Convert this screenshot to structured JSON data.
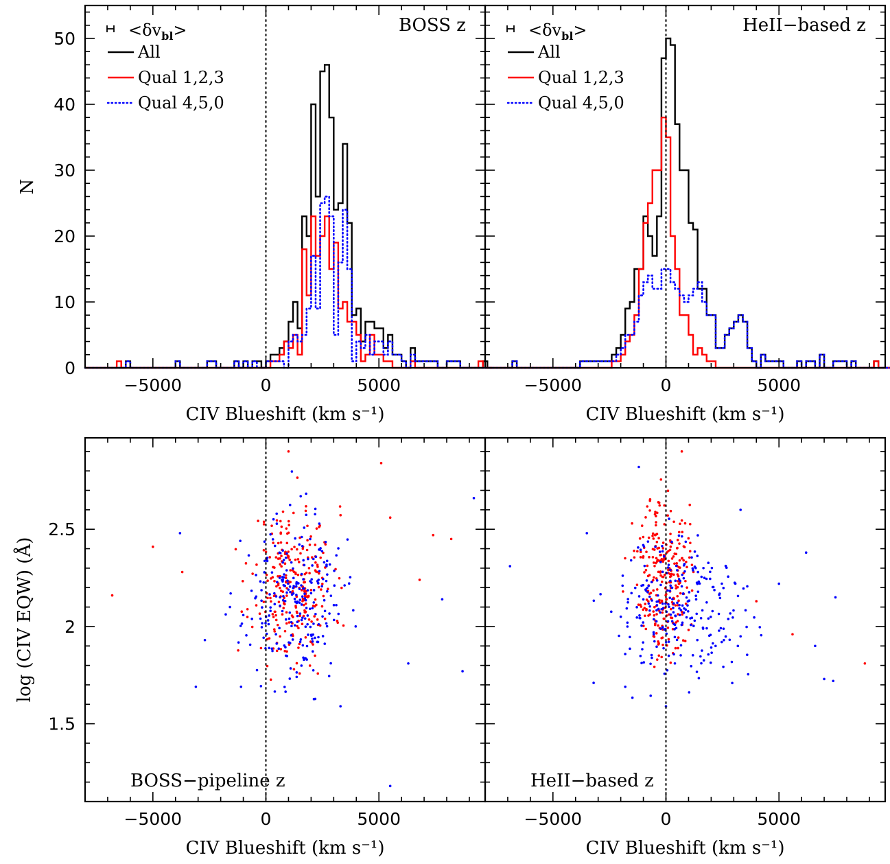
{
  "chart_data": [
    {
      "type": "histogram",
      "panel": "top-left",
      "annotation": "BOSS z",
      "xlabel": "CIV Blueshift (km s⁻¹)",
      "ylabel": "N",
      "xlim": [
        -8000,
        9700
      ],
      "ylim": [
        0,
        55
      ],
      "xticks": [
        -5000,
        0,
        5000
      ],
      "yticks": [
        0,
        10,
        20,
        30,
        40,
        50
      ],
      "reference_line_x": 0,
      "error_bar": {
        "x": -7000,
        "y": 50.5,
        "halfwidth": 150
      },
      "legend": {
        "errbar_label": "<δv",
        "errbar_sub": "bl",
        "errbar_close": ">",
        "entries": [
          "All",
          "Qual 1,2,3",
          "Qual 4,5,0"
        ],
        "placement": "top-left"
      },
      "bin_width": 200,
      "series": [
        {
          "name": "All",
          "color": "#000000",
          "style": "solid",
          "x_start": -8000,
          "values": [
            0,
            0,
            0,
            0,
            0,
            0,
            0,
            0,
            0,
            1,
            0,
            0,
            0,
            0,
            0,
            0,
            0,
            0,
            0,
            0,
            1,
            0,
            0,
            0,
            0,
            0,
            0,
            1,
            1,
            0,
            0,
            0,
            0,
            1,
            0,
            1,
            0,
            1,
            1,
            0,
            1,
            2,
            2,
            3,
            4,
            7,
            10,
            6,
            23,
            20,
            40,
            26,
            45,
            46,
            38,
            24,
            25,
            34,
            22,
            8,
            9,
            4,
            7,
            7,
            6,
            6,
            3,
            5,
            2,
            2,
            1,
            0,
            3,
            1,
            1,
            1,
            1,
            1,
            0,
            0,
            1,
            1,
            1,
            0,
            0,
            0,
            0,
            0,
            1,
            0
          ]
        },
        {
          "name": "Qual 1,2,3",
          "color": "#ff0000",
          "style": "solid",
          "x_start": -8000,
          "values": [
            0,
            0,
            0,
            0,
            0,
            0,
            0,
            1,
            0,
            0,
            0,
            0,
            0,
            0,
            0,
            0,
            0,
            0,
            0,
            0,
            0,
            0,
            0,
            0,
            0,
            0,
            0,
            0,
            0,
            0,
            0,
            0,
            0,
            0,
            0,
            0,
            0,
            0,
            0,
            0,
            0,
            1,
            1,
            2,
            4,
            3,
            5,
            2,
            18,
            11,
            23,
            17,
            20,
            23,
            15,
            19,
            9,
            10,
            7,
            7,
            5,
            1,
            2,
            5,
            2,
            2,
            1,
            1,
            0,
            0,
            0,
            0,
            1,
            0,
            0,
            0,
            0,
            0,
            0,
            0,
            0,
            0,
            0,
            0,
            0,
            0,
            0,
            1,
            0,
            0
          ]
        },
        {
          "name": "Qual 4,5,0",
          "color": "#0000ff",
          "style": "dotted",
          "x_start": -8000,
          "values": [
            0,
            0,
            0,
            0,
            0,
            0,
            0,
            0,
            0,
            1,
            0,
            0,
            0,
            0,
            0,
            0,
            0,
            0,
            0,
            0,
            1,
            0,
            0,
            0,
            0,
            0,
            0,
            1,
            1,
            0,
            0,
            0,
            0,
            1,
            0,
            1,
            0,
            1,
            0,
            0,
            1,
            1,
            1,
            1,
            0,
            4,
            5,
            4,
            5,
            9,
            17,
            9,
            25,
            26,
            23,
            5,
            16,
            24,
            15,
            1,
            4,
            3,
            5,
            2,
            4,
            4,
            2,
            4,
            2,
            2,
            1,
            0,
            2,
            1,
            1,
            1,
            1,
            1,
            0,
            0,
            1,
            1,
            1,
            0,
            0,
            0,
            0,
            0,
            0,
            0
          ]
        }
      ]
    },
    {
      "type": "histogram",
      "panel": "top-right",
      "annotation": "HeII−based z",
      "xlabel": "CIV Blueshift (km s⁻¹)",
      "xlim": [
        -8000,
        9700
      ],
      "ylim": [
        0,
        55
      ],
      "xticks": [
        -5000,
        0,
        5000
      ],
      "yticks": [
        0,
        10,
        20,
        30,
        40,
        50
      ],
      "reference_line_x": 0,
      "error_bar": {
        "x": -7000,
        "y": 50.5,
        "halfwidth": 150
      },
      "legend": {
        "errbar_label": "<δv",
        "errbar_sub": "bl",
        "errbar_close": ">",
        "entries": [
          "All",
          "Qual 1,2,3",
          "Qual 4,5,0"
        ],
        "placement": "top-left"
      },
      "bin_width": 200,
      "series": [
        {
          "name": "All",
          "color": "#000000",
          "style": "solid",
          "x_start": -8000,
          "values": [
            0,
            0,
            0,
            0,
            0,
            0,
            1,
            0,
            0,
            0,
            0,
            0,
            0,
            0,
            0,
            0,
            0,
            0,
            0,
            0,
            0,
            1,
            1,
            1,
            1,
            1,
            1,
            1,
            2,
            3,
            5,
            9,
            10,
            15,
            15,
            23,
            20,
            17,
            23,
            47,
            50,
            49,
            37,
            30,
            30,
            22,
            21,
            12,
            12,
            8,
            8,
            3,
            3,
            5,
            6,
            7,
            8,
            7,
            3,
            1,
            0,
            2,
            1,
            1,
            1,
            1,
            0,
            0,
            0,
            1,
            0,
            1,
            1,
            0,
            2,
            0,
            0,
            1,
            1,
            1,
            0,
            1,
            0,
            0,
            0,
            0,
            1,
            0,
            0,
            0,
            0,
            0
          ]
        },
        {
          "name": "Qual 1,2,3",
          "color": "#ff0000",
          "style": "solid",
          "x_start": -8000,
          "values": [
            0,
            0,
            0,
            0,
            0,
            0,
            0,
            0,
            0,
            0,
            0,
            0,
            0,
            0,
            0,
            0,
            0,
            0,
            0,
            0,
            0,
            0,
            0,
            0,
            0,
            0,
            0,
            0,
            1,
            1,
            2,
            4,
            5,
            8,
            15,
            22,
            25,
            30,
            30,
            38,
            35,
            20,
            15,
            8,
            8,
            5,
            2,
            3,
            2,
            1,
            1,
            0,
            0,
            0,
            0,
            0,
            0,
            0,
            0,
            0,
            0,
            0,
            0,
            0,
            0,
            0,
            0,
            0,
            0,
            0,
            0,
            0,
            0,
            0,
            0,
            0,
            0,
            0,
            0,
            0,
            0,
            0,
            0,
            0,
            0,
            0,
            1,
            0,
            0,
            0,
            0,
            0
          ]
        },
        {
          "name": "Qual 4,5,0",
          "color": "#0000ff",
          "style": "dotted",
          "x_start": -8000,
          "values": [
            0,
            0,
            0,
            0,
            0,
            0,
            1,
            0,
            0,
            0,
            0,
            0,
            0,
            0,
            0,
            0,
            0,
            0,
            0,
            0,
            0,
            1,
            1,
            1,
            1,
            1,
            1,
            1,
            1,
            2,
            3,
            5,
            5,
            7,
            11,
            13,
            14,
            12,
            12,
            15,
            15,
            13,
            12,
            11,
            10,
            11,
            12,
            13,
            10,
            8,
            8,
            3,
            3,
            5,
            6,
            7,
            8,
            7,
            3,
            1,
            0,
            2,
            1,
            1,
            1,
            1,
            0,
            0,
            0,
            1,
            0,
            1,
            1,
            0,
            2,
            0,
            0,
            1,
            1,
            1,
            0,
            1,
            0,
            0,
            0,
            0,
            0,
            0,
            0,
            0,
            0,
            0
          ]
        }
      ]
    },
    {
      "type": "scatter",
      "panel": "bottom-left",
      "annotation": "BOSS−pipeline z",
      "xlabel": "CIV Blueshift (km s⁻¹)",
      "ylabel": "log (CIV EQW) (Å)",
      "xlim": [
        -8000,
        9700
      ],
      "ylim": [
        1.1,
        2.97
      ],
      "xticks": [
        -5000,
        0,
        5000
      ],
      "yticks": [
        1.5,
        2,
        2.5
      ],
      "ytick_labels": [
        "1.5",
        "2",
        "2.5"
      ],
      "reference_line_x": 0,
      "series": [
        {
          "name": "Qual 1,2,3",
          "color": "#ff0000",
          "n": 260,
          "center": [
            1200,
            2.22
          ],
          "spread": [
            900,
            0.2
          ],
          "seed": 11,
          "outliers": [
            [
              -6800,
              2.16
            ],
            [
              -5000,
              2.41
            ],
            [
              -3700,
              2.28
            ],
            [
              1000,
              2.9
            ],
            [
              5100,
              2.84
            ],
            [
              5500,
              2.56
            ],
            [
              7400,
              2.47
            ],
            [
              8200,
              2.45
            ],
            [
              6800,
              2.24
            ]
          ]
        },
        {
          "name": "Qual 4,5,0",
          "color": "#0000ff",
          "n": 250,
          "center": [
            1200,
            2.12
          ],
          "spread": [
            1100,
            0.22
          ],
          "seed": 23,
          "outliers": [
            [
              -3800,
              2.48
            ],
            [
              -3100,
              1.69
            ],
            [
              -2700,
              1.93
            ],
            [
              -1100,
              1.69
            ],
            [
              3300,
              1.59
            ],
            [
              5500,
              1.18
            ],
            [
              9200,
              2.66
            ],
            [
              8700,
              1.77
            ],
            [
              6300,
              1.81
            ],
            [
              7800,
              2.14
            ]
          ]
        }
      ]
    },
    {
      "type": "scatter",
      "panel": "bottom-right",
      "annotation": "HeII−based z",
      "xlabel": "CIV Blueshift (km s⁻¹)",
      "xlim": [
        -8000,
        9700
      ],
      "ylim": [
        1.1,
        2.97
      ],
      "xticks": [
        -5000,
        0,
        5000
      ],
      "yticks": [
        1.5,
        2,
        2.5
      ],
      "reference_line_x": 0,
      "series": [
        {
          "name": "Qual 1,2,3",
          "color": "#ff0000",
          "n": 270,
          "center": [
            -100,
            2.27
          ],
          "spread": [
            550,
            0.2
          ],
          "seed": 37,
          "outliers": [
            [
              700,
              2.9
            ],
            [
              -1500,
              2.53
            ],
            [
              -1900,
              2.18
            ],
            [
              5600,
              1.96
            ],
            [
              8800,
              1.81
            ],
            [
              4000,
              2.13
            ]
          ]
        },
        {
          "name": "Qual 4,5,0",
          "color": "#0000ff",
          "n": 260,
          "center": [
            600,
            2.08
          ],
          "spread": [
            1500,
            0.18
          ],
          "seed": 51,
          "outliers": [
            [
              -6900,
              2.31
            ],
            [
              -3500,
              2.48
            ],
            [
              -3200,
              1.71
            ],
            [
              -1800,
              1.69
            ],
            [
              -1200,
              2.82
            ],
            [
              0,
              1.59
            ],
            [
              6200,
              2.38
            ],
            [
              7500,
              2.15
            ],
            [
              7400,
              1.72
            ],
            [
              6600,
              1.9
            ],
            [
              7000,
              1.73
            ],
            [
              3300,
              2.6
            ],
            [
              5000,
              2.22
            ]
          ]
        }
      ]
    }
  ]
}
